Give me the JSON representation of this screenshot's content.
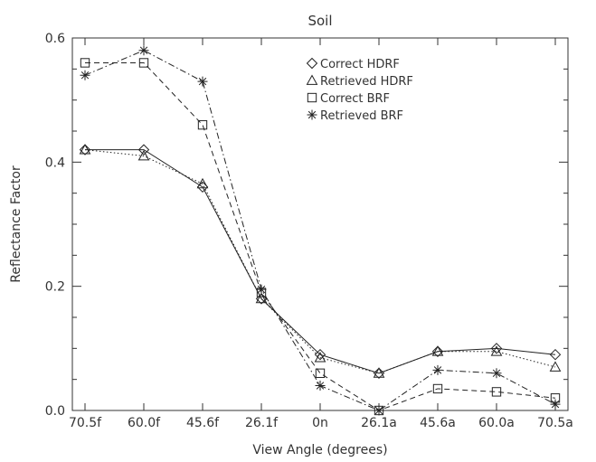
{
  "chart_data": {
    "type": "line",
    "title": "Soil",
    "xlabel": "View Angle (degrees)",
    "ylabel": "Reflectance Factor",
    "x_tick_labels": [
      "70.5f",
      "60.0f",
      "45.6f",
      "26.1f",
      "0n",
      "26.1a",
      "45.6a",
      "60.0a",
      "70.5a"
    ],
    "y_ticks": [
      0.0,
      0.2,
      0.4,
      0.6
    ],
    "y_tick_labels": [
      "0.0",
      "0.2",
      "0.4",
      "0.6"
    ],
    "ylim": [
      0.0,
      0.6
    ],
    "grid": false,
    "legend_position": "top-right",
    "series": [
      {
        "name": "Correct HDRF",
        "marker": "diamond",
        "line": "solid",
        "x": [
          "70.5f",
          "60.0f",
          "45.6f",
          "26.1f",
          "0n",
          "26.1a",
          "45.6a",
          "60.0a",
          "70.5a"
        ],
        "values": [
          0.42,
          0.42,
          0.36,
          0.18,
          0.09,
          0.06,
          0.095,
          0.1,
          0.09
        ]
      },
      {
        "name": "Retrieved HDRF",
        "marker": "triangle",
        "line": "dotted",
        "x": [
          "70.5f",
          "60.0f",
          "45.6f",
          "26.1f",
          "0n",
          "26.1a",
          "45.6a",
          "60.0a",
          "70.5a"
        ],
        "values": [
          0.42,
          0.41,
          0.365,
          0.18,
          0.085,
          0.06,
          0.095,
          0.095,
          0.07
        ]
      },
      {
        "name": "Correct BRF",
        "marker": "square",
        "line": "dashed",
        "x": [
          "70.5f",
          "60.0f",
          "45.6f",
          "26.1f",
          "0n",
          "26.1a",
          "45.6a",
          "60.0a",
          "70.5a"
        ],
        "values": [
          0.56,
          0.56,
          0.46,
          0.19,
          0.06,
          0.0,
          0.035,
          0.03,
          0.02
        ]
      },
      {
        "name": "Retrieved BRF",
        "marker": "asterisk",
        "line": "dash-dot",
        "x": [
          "70.5f",
          "60.0f",
          "45.6f",
          "26.1f",
          "0n",
          "26.1a",
          "45.6a",
          "60.0a",
          "70.5a"
        ],
        "values": [
          0.54,
          0.58,
          0.53,
          0.195,
          0.04,
          0.0,
          0.065,
          0.06,
          0.01
        ]
      }
    ]
  }
}
